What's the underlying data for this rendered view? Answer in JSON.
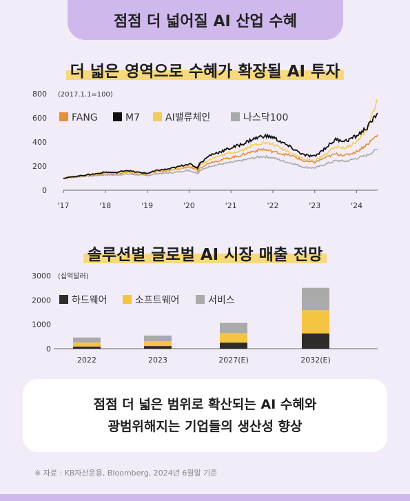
{
  "header": {
    "title": "점점 더 넓어질 AI 산업 수혜"
  },
  "chart1_title": "더 넓은 영역으로 수혜가 확장될 AI 투자",
  "chart2_title": "솔루션별 글로벌 AI 시장 매출 전망",
  "summary": {
    "line1": "점점 더 넓은 범위로 확산되는 AI 수혜와",
    "line2": "광범위해지는 기업들의 생산성 향상"
  },
  "source": "※ 자료 : KB자산운용, Bloomberg, 2024년 6월말 기준",
  "colors": {
    "fang": "#e88d3c",
    "m7": "#111111",
    "ai_chain": "#f3cd5a",
    "nasdaq": "#a9a9a9",
    "hardware": "#2e2b2b",
    "software": "#f6c443",
    "service": "#aaaaaa"
  },
  "chart_data": [
    {
      "type": "line",
      "unit": "(2017.1.1=100)",
      "x": [
        "'17",
        "'18",
        "'19",
        "'20",
        "'21",
        "'22",
        "'23",
        "'24"
      ],
      "x_values": [
        2017,
        2017.25,
        2017.5,
        2017.75,
        2018,
        2018.25,
        2018.5,
        2018.75,
        2019,
        2019.25,
        2019.5,
        2019.75,
        2020,
        2020.2,
        2020.25,
        2020.5,
        2020.75,
        2021,
        2021.25,
        2021.5,
        2021.75,
        2022,
        2022.25,
        2022.5,
        2022.75,
        2023,
        2023.25,
        2023.5,
        2023.75,
        2024,
        2024.25,
        2024.5
      ],
      "ylim": [
        0,
        800
      ],
      "yticks": [
        0,
        200,
        400,
        600,
        800
      ],
      "series": [
        {
          "name": "FANG",
          "key": "fang",
          "values": [
            100,
            110,
            120,
            128,
            138,
            135,
            150,
            140,
            135,
            155,
            160,
            175,
            195,
            160,
            185,
            230,
            250,
            270,
            290,
            320,
            340,
            320,
            300,
            280,
            240,
            230,
            270,
            300,
            290,
            320,
            380,
            460
          ]
        },
        {
          "name": "M7",
          "key": "m7",
          "values": [
            100,
            112,
            125,
            135,
            150,
            145,
            165,
            150,
            140,
            165,
            175,
            195,
            220,
            185,
            220,
            290,
            320,
            350,
            380,
            420,
            450,
            440,
            390,
            340,
            290,
            280,
            350,
            420,
            410,
            450,
            520,
            640
          ]
        },
        {
          "name": "AI밸류체인",
          "key": "ai_chain",
          "values": [
            100,
            110,
            122,
            130,
            142,
            138,
            155,
            145,
            138,
            158,
            165,
            182,
            205,
            175,
            205,
            260,
            285,
            310,
            330,
            370,
            395,
            380,
            340,
            300,
            255,
            245,
            300,
            360,
            350,
            400,
            500,
            750
          ]
        },
        {
          "name": "나스닥100",
          "key": "nasdaq",
          "values": [
            100,
            108,
            115,
            120,
            128,
            125,
            135,
            128,
            122,
            138,
            142,
            152,
            165,
            140,
            160,
            200,
            215,
            230,
            245,
            265,
            280,
            270,
            240,
            220,
            190,
            185,
            215,
            245,
            240,
            265,
            290,
            340
          ]
        }
      ]
    },
    {
      "type": "bar",
      "unit": "(십억달러)",
      "categories": [
        "2022",
        "2023",
        "2027(E)",
        "2032(E)"
      ],
      "ylim": [
        0,
        3000
      ],
      "yticks": [
        0,
        1000,
        2000,
        3000
      ],
      "series": [
        {
          "name": "하드웨어",
          "key": "hardware",
          "values": [
            90,
            110,
            250,
            630
          ]
        },
        {
          "name": "소프트웨어",
          "key": "software",
          "values": [
            170,
            200,
            390,
            950
          ]
        },
        {
          "name": "서비스",
          "key": "service",
          "values": [
            200,
            230,
            420,
            920
          ]
        }
      ]
    }
  ]
}
